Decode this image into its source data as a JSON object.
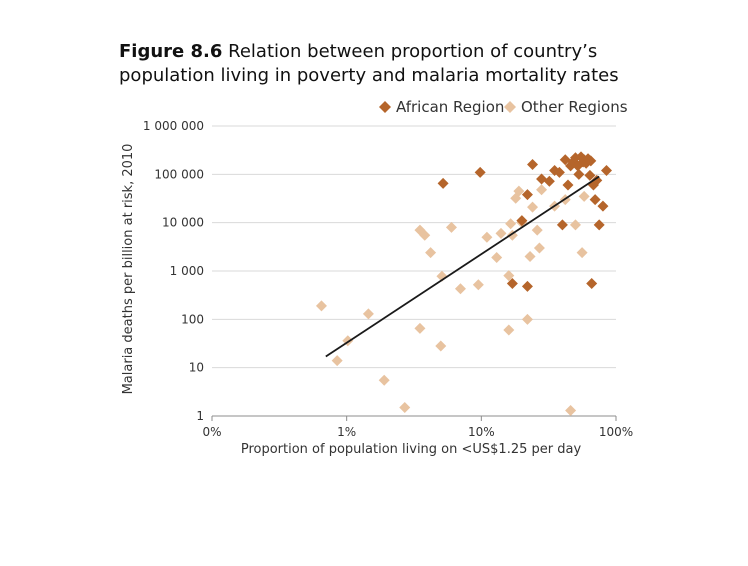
{
  "figure": {
    "label": "Figure 8.6",
    "title_text": "Relation between proportion of country’s population living in poverty and malaria mortality rates"
  },
  "colors": {
    "african": "#b5652b",
    "other": "#e8c3a0",
    "grid": "#d9d9d9",
    "trend": "#1a1a1a"
  },
  "chart_data": {
    "type": "scatter",
    "title": "Relation between proportion of country’s population living in poverty and malaria mortality rates",
    "xlabel": "Proportion of population living on <US$1.25 per day",
    "ylabel": "Malaria deaths per billion at risk, 2010",
    "x_scale": "log",
    "y_scale": "log",
    "xlim": [
      0.1,
      100
    ],
    "ylim": [
      1,
      1000000
    ],
    "x_tick_labels": [
      "0%",
      "1%",
      "10%",
      "100%"
    ],
    "y_tick_labels": [
      "1",
      "10",
      "100",
      "1 000",
      "10 000",
      "100 000",
      "1 000 000"
    ],
    "legend_position": "top-right",
    "grid": "horizontal",
    "trendline": {
      "x": [
        0.7,
        75
      ],
      "y": [
        17,
        90000
      ]
    },
    "series": [
      {
        "name": "African Region",
        "color": "#b5652b",
        "points": [
          [
            5.2,
            65000
          ],
          [
            9.8,
            110000
          ],
          [
            22,
            38000
          ],
          [
            20,
            11000
          ],
          [
            17,
            550
          ],
          [
            22,
            480
          ],
          [
            24,
            160000
          ],
          [
            28,
            80000
          ],
          [
            32,
            72000
          ],
          [
            35,
            120000
          ],
          [
            38,
            110000
          ],
          [
            40,
            9000
          ],
          [
            42,
            200000
          ],
          [
            44,
            60000
          ],
          [
            46,
            150000
          ],
          [
            48,
            180000
          ],
          [
            50,
            220000
          ],
          [
            52,
            150000
          ],
          [
            53,
            100000
          ],
          [
            55,
            230000
          ],
          [
            57,
            180000
          ],
          [
            58,
            200000
          ],
          [
            60,
            170000
          ],
          [
            62,
            210000
          ],
          [
            64,
            95000
          ],
          [
            65,
            190000
          ],
          [
            66,
            550
          ],
          [
            68,
            60000
          ],
          [
            70,
            30000
          ],
          [
            72,
            75000
          ],
          [
            75,
            9000
          ],
          [
            80,
            22000
          ],
          [
            85,
            120000
          ]
        ]
      },
      {
        "name": "Other Regions",
        "color": "#e8c3a0",
        "points": [
          [
            0.65,
            190
          ],
          [
            0.85,
            14
          ],
          [
            1.02,
            36
          ],
          [
            1.45,
            130
          ],
          [
            1.9,
            5.5
          ],
          [
            2.7,
            1.5
          ],
          [
            3.5,
            65
          ],
          [
            3.5,
            7000
          ],
          [
            3.8,
            5500
          ],
          [
            4.2,
            2400
          ],
          [
            5.0,
            28
          ],
          [
            5.1,
            780
          ],
          [
            6.0,
            8000
          ],
          [
            7.0,
            430
          ],
          [
            9.5,
            520
          ],
          [
            11,
            5000
          ],
          [
            13,
            1900
          ],
          [
            14,
            6000
          ],
          [
            16,
            800
          ],
          [
            16,
            60
          ],
          [
            16.5,
            9500
          ],
          [
            17,
            5500
          ],
          [
            18,
            32000
          ],
          [
            19,
            45000
          ],
          [
            20,
            10000
          ],
          [
            22,
            100
          ],
          [
            23,
            2000
          ],
          [
            24,
            21000
          ],
          [
            26,
            7000
          ],
          [
            27,
            3000
          ],
          [
            28,
            48000
          ],
          [
            35,
            22000
          ],
          [
            42,
            30000
          ],
          [
            46,
            1.3
          ],
          [
            50,
            9000
          ],
          [
            56,
            2400
          ],
          [
            58,
            35000
          ]
        ]
      }
    ]
  }
}
